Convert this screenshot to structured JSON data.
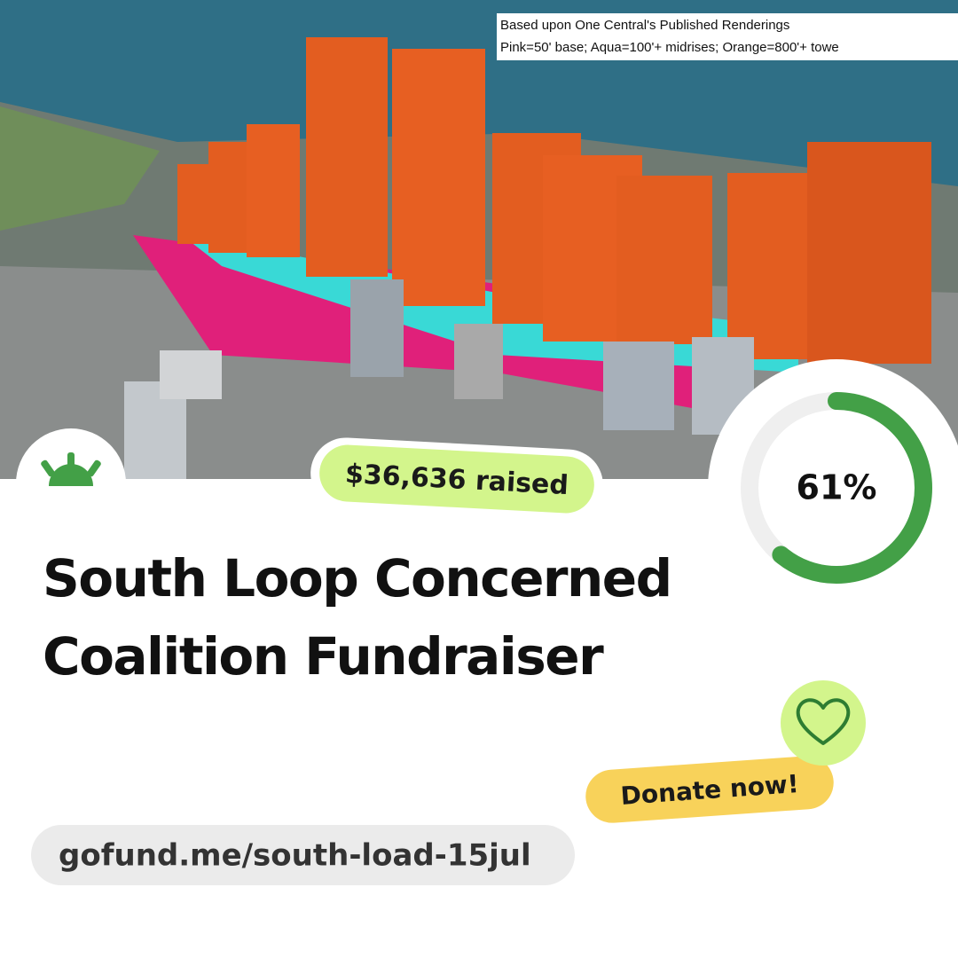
{
  "image": {
    "caption_line1": "Based upon One Central's Published Renderings",
    "caption_line2": "Pink=50' base; Aqua=100'+ midrises; Orange=800'+ towe"
  },
  "raised": "$36,636 raised",
  "progress": {
    "value": 61,
    "label": "61%"
  },
  "title": {
    "line1": "South Loop Concerned",
    "line2": "Coalition Fundraiser"
  },
  "donate_button": "Donate now!",
  "url": "gofund.me/south-load-15jul"
}
